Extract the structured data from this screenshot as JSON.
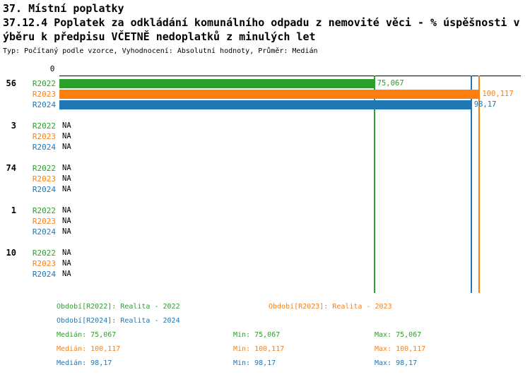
{
  "colors": {
    "r2022": "#2ca02c",
    "r2023": "#ff7f0e",
    "r2024": "#1f77b4",
    "text": "#000000",
    "axis": "#000000"
  },
  "chart_data": {
    "type": "bar",
    "orientation": "horizontal",
    "title_lines": [
      "37. Místní poplatky",
      "37.12.4 Poplatek za odkládání komunálního odpadu z nemovité věci - % úspěšnosti v",
      "ýběru k předpisu VČETNĚ nedoplatků z minulých let"
    ],
    "subtitle": "Typ: Počítaný podle vzorce, Vyhodnocení: Absolutní hodnoty, Průměr: Medián",
    "axis": {
      "min": 0,
      "max": 110,
      "origin_tick_label": "0"
    },
    "series": [
      {
        "key": "r2022",
        "label": "R2022"
      },
      {
        "key": "r2023",
        "label": "R2023"
      },
      {
        "key": "r2024",
        "label": "R2024"
      }
    ],
    "groups": [
      {
        "label": "56",
        "values": [
          75.067,
          100.117,
          98.17
        ],
        "value_labels": [
          "75,067",
          "100,117",
          "98,17"
        ]
      },
      {
        "label": "3",
        "values": [
          null,
          null,
          null
        ],
        "value_labels": [
          "NA",
          "NA",
          "NA"
        ]
      },
      {
        "label": "74",
        "values": [
          null,
          null,
          null
        ],
        "value_labels": [
          "NA",
          "NA",
          "NA"
        ]
      },
      {
        "label": "1",
        "values": [
          null,
          null,
          null
        ],
        "value_labels": [
          "NA",
          "NA",
          "NA"
        ]
      },
      {
        "label": "10",
        "values": [
          null,
          null,
          null
        ],
        "value_labels": [
          "NA",
          "NA",
          "NA"
        ]
      }
    ],
    "reference_lines": [
      {
        "series": "r2022",
        "value": 75.067
      },
      {
        "series": "r2024",
        "value": 98.17
      },
      {
        "series": "r2023",
        "value": 100.117
      }
    ],
    "legend": {
      "items": [
        {
          "series": "r2022",
          "text": "Období[R2022]: Realita - 2022"
        },
        {
          "series": "r2023",
          "text": "Období[R2023]: Realita - 2023"
        },
        {
          "series": "r2024",
          "text": "Období[R2024]: Realita - 2024"
        }
      ]
    },
    "stats": {
      "rows": [
        {
          "series": "r2022",
          "cells": [
            "Medián: 75,067",
            "Min: 75,067",
            "Max: 75,067"
          ]
        },
        {
          "series": "r2023",
          "cells": [
            "Medián: 100,117",
            "Min: 100,117",
            "Max: 100,117"
          ]
        },
        {
          "series": "r2024",
          "cells": [
            "Medián: 98,17",
            "Min: 98,17",
            "Max: 98,17"
          ]
        }
      ]
    }
  }
}
